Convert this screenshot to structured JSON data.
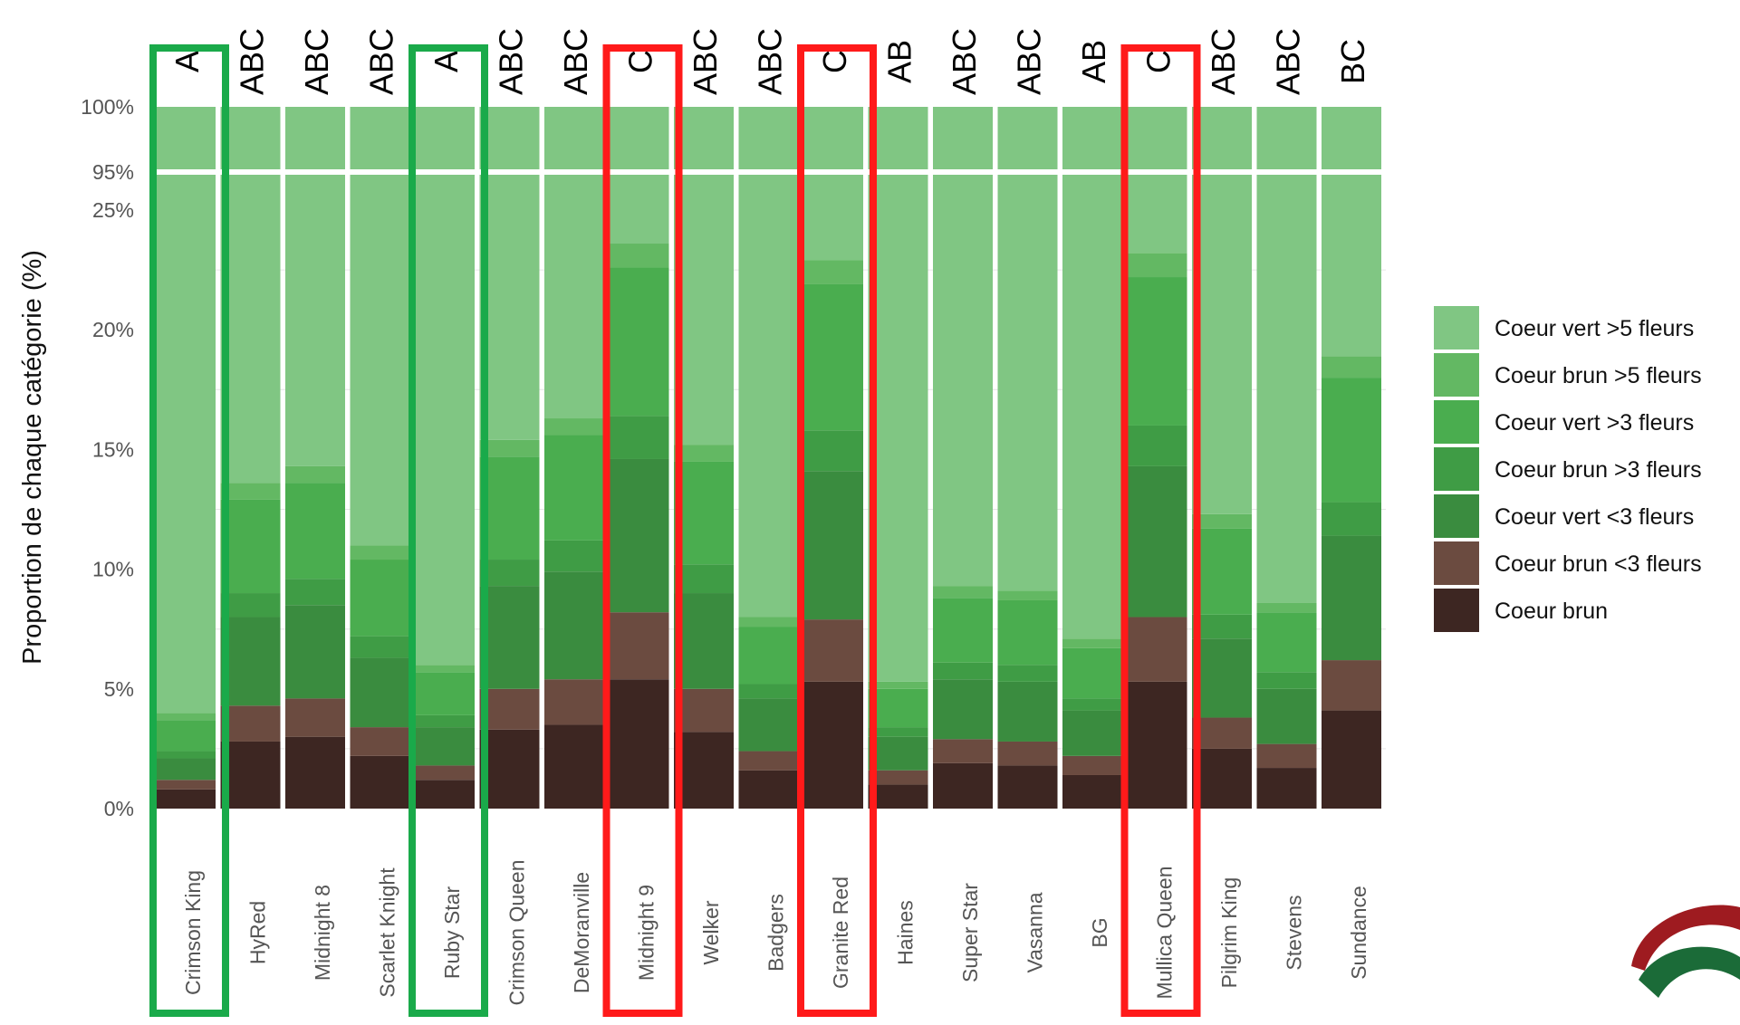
{
  "chart_data": {
    "type": "bar",
    "stacked": true,
    "ylabel": "Proportion de chaque catégorie (%)",
    "y_ticks_lower": [
      "0%",
      "5%",
      "10%",
      "15%",
      "20%",
      "25%"
    ],
    "y_ticks_upper": [
      "95%",
      "100%"
    ],
    "axis_break_mark": "//",
    "categories": [
      "Crimson King",
      "HyRed",
      "Midnight 8",
      "Scarlet Knight",
      "Ruby Star",
      "Crimson Queen",
      "DeMoranville",
      "Midnight 9",
      "Welker",
      "Badgers",
      "Granite Red",
      "Haines",
      "Super Star",
      "Vasanna",
      "BG",
      "Mullica Queen",
      "Pilgrim King",
      "Stevens",
      "Sundance"
    ],
    "group_letters": [
      "A",
      "ABC",
      "ABC",
      "ABC",
      "A",
      "ABC",
      "ABC",
      "C",
      "ABC",
      "ABC",
      "C",
      "AB",
      "ABC",
      "ABC",
      "AB",
      "C",
      "ABC",
      "ABC",
      "BC"
    ],
    "legend_position": "right",
    "series": [
      {
        "name": "Coeur brun",
        "color": "#3d2622",
        "values": [
          0.8,
          2.8,
          3.0,
          2.2,
          1.2,
          3.3,
          3.5,
          5.4,
          3.2,
          1.6,
          5.3,
          1.0,
          1.9,
          1.8,
          1.4,
          5.3,
          2.5,
          1.7,
          4.1
        ]
      },
      {
        "name": "Coeur brun <3 fleurs",
        "color": "#6b4b40",
        "values": [
          0.4,
          1.5,
          1.6,
          1.2,
          0.6,
          1.7,
          1.9,
          2.8,
          1.8,
          0.8,
          2.6,
          0.6,
          1.0,
          1.0,
          0.8,
          2.7,
          1.3,
          1.0,
          2.1
        ]
      },
      {
        "name": "Coeur vert <3 fleurs",
        "color": "#3a8c3f",
        "values": [
          0.9,
          3.7,
          3.9,
          2.9,
          1.6,
          4.3,
          4.5,
          6.4,
          4.0,
          2.2,
          6.2,
          1.4,
          2.5,
          2.5,
          1.9,
          6.3,
          3.3,
          2.3,
          5.2
        ]
      },
      {
        "name": "Coeur brun >3 fleurs",
        "color": "#3f9c45",
        "values": [
          0.3,
          1.0,
          1.1,
          0.9,
          0.5,
          1.1,
          1.3,
          1.8,
          1.2,
          0.6,
          1.7,
          0.4,
          0.7,
          0.7,
          0.5,
          1.7,
          1.0,
          0.7,
          1.4
        ]
      },
      {
        "name": "Coeur vert >3 fleurs",
        "color": "#4aad4f",
        "values": [
          1.3,
          3.9,
          4.0,
          3.2,
          1.8,
          4.3,
          4.4,
          6.2,
          4.3,
          2.4,
          6.1,
          1.6,
          2.7,
          2.7,
          2.1,
          6.2,
          3.6,
          2.5,
          5.2
        ]
      },
      {
        "name": "Coeur brun >5 fleurs",
        "color": "#63b863",
        "values": [
          0.3,
          0.7,
          0.7,
          0.6,
          0.3,
          0.7,
          0.7,
          1.0,
          0.7,
          0.4,
          1.0,
          0.3,
          0.5,
          0.4,
          0.4,
          1.0,
          0.6,
          0.4,
          0.9
        ]
      },
      {
        "name": "Coeur vert >5 fleurs",
        "color": "#80c683",
        "values": [
          96.0,
          86.4,
          85.7,
          89.0,
          94.0,
          84.6,
          83.7,
          76.4,
          84.8,
          92.0,
          77.1,
          94.7,
          90.7,
          90.9,
          92.9,
          76.8,
          87.7,
          91.4,
          81.1
        ]
      }
    ],
    "highlight_boxes": [
      {
        "category": "Crimson King",
        "color": "#1aaa4a"
      },
      {
        "category": "Ruby Star",
        "color": "#1aaa4a"
      },
      {
        "category": "Midnight 9",
        "color": "#ff1a1a"
      },
      {
        "category": "Granite Red",
        "color": "#ff1a1a"
      },
      {
        "category": "Mullica Queen",
        "color": "#ff1a1a"
      }
    ]
  },
  "logo": {
    "colors": [
      "#9e1b20",
      "#1b6b38"
    ]
  }
}
